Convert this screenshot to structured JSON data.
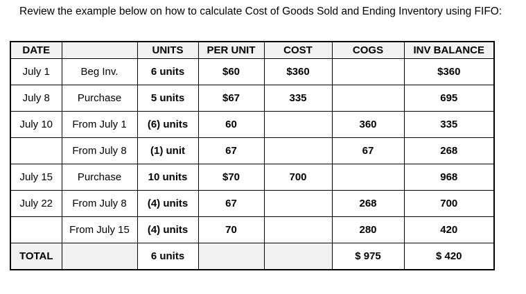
{
  "title": "Review the example below on how to calculate Cost of Goods Sold and Ending Inventory using FIFO:",
  "colors": {
    "page_bg": "#ffffff",
    "header_bg": "#f1f1f1",
    "shaded_cell_bg": "#f1f1f1",
    "border": "#000000",
    "text": "#000000"
  },
  "table": {
    "headers": [
      "DATE",
      "",
      "UNITS",
      "PER UNIT",
      "COST",
      "COGS",
      "INV BALANCE"
    ],
    "rows": [
      [
        "July 1",
        "Beg Inv.",
        "6 units",
        "$60",
        "$360",
        "",
        "$360"
      ],
      [
        "July 8",
        "Purchase",
        "5 units",
        "$67",
        "335",
        "",
        "695"
      ],
      [
        "July 10",
        "From July 1",
        "(6) units",
        "60",
        "",
        "360",
        "335"
      ],
      [
        "",
        "From July 8",
        "(1) unit",
        "67",
        "",
        "67",
        "268"
      ],
      [
        "July 15",
        "Purchase",
        "10 units",
        "$70",
        "700",
        "",
        "968"
      ],
      [
        "July 22",
        "From July 8",
        "(4) units",
        "67",
        "",
        "268",
        "700"
      ],
      [
        "",
        "From July 15",
        "(4) units",
        "70",
        "",
        "280",
        "420"
      ],
      [
        "TOTAL",
        "",
        "6 units",
        "",
        "",
        "$ 975",
        "$ 420"
      ]
    ]
  }
}
